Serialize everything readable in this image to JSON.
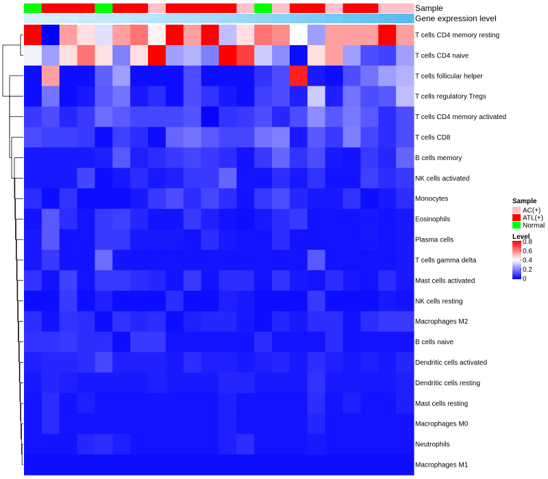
{
  "chart_data": {
    "type": "heatmap",
    "title": "",
    "column_annotations": {
      "sample_label": "Sample",
      "expression_label": "Gene expression level",
      "sample_groups": [
        "Normal",
        "ATL",
        "ATL",
        "ATL",
        "Normal",
        "ATL",
        "ATL",
        "AC",
        "ATL",
        "ATL",
        "ATL",
        "ATL",
        "AC",
        "Normal",
        "AC",
        "ATL",
        "ATL",
        "AC",
        "ATL",
        "ATL",
        "AC",
        "AC"
      ],
      "expression_levels": [
        0.08,
        0.1,
        0.12,
        0.15,
        0.18,
        0.2,
        0.22,
        0.25,
        0.28,
        0.3,
        0.33,
        0.36,
        0.4,
        0.43,
        0.47,
        0.5,
        0.54,
        0.58,
        0.62,
        0.66,
        0.7,
        0.74
      ]
    },
    "rows": [
      "T cells CD4 memory resting",
      "T cells CD4 naive",
      "T cells follicular helper",
      "T cells regulatory  Tregs",
      "T cells CD4 memory activated",
      "T cells CD8",
      "B cells memory",
      "NK cells activated",
      "Monocytes",
      "Eosinophils",
      "Plasma cells",
      "T cells gamma delta",
      "Mast cells activated",
      "NK cells resting",
      "Macrophages M2",
      "B cells naive",
      "Dendritic cells activated",
      "Dendritic cells resting",
      "Mast cells resting",
      "Macrophages M0",
      "Neutrophils",
      "Macrophages M1"
    ],
    "values": [
      [
        0.8,
        0.0,
        0.55,
        0.45,
        0.35,
        0.55,
        0.62,
        0.42,
        0.8,
        0.55,
        0.8,
        0.3,
        0.45,
        0.62,
        0.58,
        0.4,
        0.25,
        0.55,
        0.55,
        0.55,
        0.8,
        0.55
      ],
      [
        0.38,
        0.25,
        0.45,
        0.62,
        0.45,
        0.2,
        0.45,
        0.8,
        0.25,
        0.28,
        0.2,
        0.8,
        0.7,
        0.32,
        0.22,
        0.02,
        0.45,
        0.55,
        0.25,
        0.12,
        0.1,
        0.25
      ],
      [
        0.02,
        0.55,
        0.02,
        0.02,
        0.15,
        0.25,
        0.02,
        0.02,
        0.02,
        0.12,
        0.02,
        0.02,
        0.02,
        0.08,
        0.12,
        0.75,
        0.04,
        0.02,
        0.12,
        0.18,
        0.25,
        0.28
      ],
      [
        0.02,
        0.18,
        0.02,
        0.04,
        0.14,
        0.18,
        0.04,
        0.07,
        0.02,
        0.12,
        0.08,
        0.04,
        0.02,
        0.1,
        0.12,
        0.05,
        0.32,
        0.05,
        0.18,
        0.12,
        0.14,
        0.3
      ],
      [
        0.09,
        0.12,
        0.06,
        0.09,
        0.17,
        0.14,
        0.11,
        0.11,
        0.11,
        0.13,
        0.01,
        0.08,
        0.09,
        0.12,
        0.06,
        0.12,
        0.22,
        0.14,
        0.19,
        0.14,
        0.07,
        0.12
      ],
      [
        0.12,
        0.1,
        0.1,
        0.09,
        0.02,
        0.1,
        0.07,
        0.02,
        0.16,
        0.18,
        0.14,
        0.11,
        0.11,
        0.18,
        0.2,
        0.04,
        0.14,
        0.09,
        0.2,
        0.11,
        0.07,
        0.12
      ],
      [
        0.04,
        0.04,
        0.04,
        0.04,
        0.05,
        0.14,
        0.05,
        0.07,
        0.09,
        0.11,
        0.09,
        0.07,
        0.03,
        0.09,
        0.16,
        0.08,
        0.12,
        0.04,
        0.03,
        0.09,
        0.06,
        0.16
      ],
      [
        0.04,
        0.04,
        0.04,
        0.11,
        0.02,
        0.04,
        0.07,
        0.04,
        0.05,
        0.09,
        0.09,
        0.16,
        0.03,
        0.03,
        0.07,
        0.04,
        0.08,
        0.03,
        0.03,
        0.1,
        0.07,
        0.09
      ],
      [
        0.07,
        0.02,
        0.08,
        0.02,
        0.02,
        0.02,
        0.04,
        0.09,
        0.12,
        0.07,
        0.11,
        0.07,
        0.03,
        0.09,
        0.12,
        0.06,
        0.04,
        0.04,
        0.08,
        0.02,
        0.04,
        0.07
      ],
      [
        0.03,
        0.14,
        0.07,
        0.03,
        0.09,
        0.1,
        0.06,
        0.03,
        0.03,
        0.09,
        0.05,
        0.03,
        0.02,
        0.04,
        0.07,
        0.09,
        0.03,
        0.03,
        0.03,
        0.04,
        0.03,
        0.04
      ],
      [
        0.04,
        0.14,
        0.03,
        0.03,
        0.09,
        0.09,
        0.04,
        0.04,
        0.04,
        0.03,
        0.07,
        0.04,
        0.03,
        0.03,
        0.07,
        0.03,
        0.03,
        0.03,
        0.03,
        0.04,
        0.03,
        0.04
      ],
      [
        0.04,
        0.09,
        0.03,
        0.03,
        0.17,
        0.03,
        0.03,
        0.03,
        0.03,
        0.03,
        0.03,
        0.03,
        0.03,
        0.03,
        0.03,
        0.03,
        0.14,
        0.03,
        0.03,
        0.03,
        0.03,
        0.04
      ],
      [
        0.08,
        0.03,
        0.1,
        0.03,
        0.09,
        0.09,
        0.07,
        0.06,
        0.03,
        0.09,
        0.03,
        0.07,
        0.07,
        0.03,
        0.08,
        0.04,
        0.03,
        0.07,
        0.04,
        0.03,
        0.07,
        0.04
      ],
      [
        0.02,
        0.02,
        0.09,
        0.02,
        0.05,
        0.02,
        0.02,
        0.02,
        0.07,
        0.02,
        0.02,
        0.05,
        0.04,
        0.02,
        0.02,
        0.02,
        0.09,
        0.02,
        0.02,
        0.02,
        0.04,
        0.03
      ],
      [
        0.07,
        0.03,
        0.08,
        0.07,
        0.02,
        0.08,
        0.06,
        0.07,
        0.02,
        0.05,
        0.06,
        0.06,
        0.04,
        0.02,
        0.06,
        0.04,
        0.07,
        0.07,
        0.03,
        0.07,
        0.09,
        0.09
      ],
      [
        0.08,
        0.08,
        0.09,
        0.07,
        0.07,
        0.02,
        0.09,
        0.09,
        0.03,
        0.03,
        0.03,
        0.03,
        0.03,
        0.07,
        0.03,
        0.03,
        0.03,
        0.07,
        0.03,
        0.03,
        0.03,
        0.03
      ],
      [
        0.05,
        0.06,
        0.06,
        0.07,
        0.11,
        0.05,
        0.05,
        0.05,
        0.04,
        0.07,
        0.05,
        0.05,
        0.04,
        0.05,
        0.06,
        0.04,
        0.07,
        0.05,
        0.04,
        0.05,
        0.04,
        0.06
      ],
      [
        0.04,
        0.06,
        0.05,
        0.04,
        0.04,
        0.04,
        0.04,
        0.05,
        0.04,
        0.04,
        0.04,
        0.06,
        0.06,
        0.04,
        0.04,
        0.04,
        0.08,
        0.04,
        0.04,
        0.04,
        0.04,
        0.05
      ],
      [
        0.03,
        0.07,
        0.03,
        0.05,
        0.03,
        0.03,
        0.03,
        0.03,
        0.03,
        0.03,
        0.03,
        0.05,
        0.03,
        0.03,
        0.03,
        0.03,
        0.07,
        0.03,
        0.05,
        0.03,
        0.03,
        0.05
      ],
      [
        0.03,
        0.07,
        0.03,
        0.03,
        0.03,
        0.03,
        0.03,
        0.03,
        0.03,
        0.03,
        0.03,
        0.05,
        0.03,
        0.03,
        0.03,
        0.03,
        0.06,
        0.03,
        0.03,
        0.03,
        0.03,
        0.03
      ],
      [
        0.03,
        0.03,
        0.03,
        0.06,
        0.07,
        0.05,
        0.03,
        0.03,
        0.03,
        0.03,
        0.03,
        0.05,
        0.07,
        0.03,
        0.03,
        0.03,
        0.04,
        0.03,
        0.03,
        0.03,
        0.03,
        0.03
      ],
      [
        0.02,
        0.02,
        0.02,
        0.02,
        0.02,
        0.02,
        0.02,
        0.02,
        0.02,
        0.02,
        0.02,
        0.02,
        0.02,
        0.02,
        0.02,
        0.02,
        0.02,
        0.02,
        0.02,
        0.02,
        0.02,
        0.02
      ]
    ],
    "legend": {
      "sample_title": "Sample",
      "sample_items": [
        {
          "label": "AC(+)",
          "color": "#ffc0cb"
        },
        {
          "label": "ATL(+)",
          "color": "#ff0000"
        },
        {
          "label": "Normal",
          "color": "#00ff00"
        }
      ],
      "level_title": "Level",
      "level_ticks": [
        "0.8",
        "0.6",
        "0.4",
        "0.2",
        "0"
      ],
      "level_range": [
        0,
        0.8
      ],
      "position": "right"
    },
    "color_scale": {
      "low": "#0000ff",
      "mid": "#ffffff",
      "high": "#ff0000"
    },
    "annotation_color_scale": {
      "low": "#e8f6fc",
      "high": "#4bb8ee"
    },
    "group_colors": {
      "AC": "#ffc0cb",
      "ATL": "#ff0000",
      "Normal": "#00ff00"
    },
    "dendrogram": "left",
    "xlabel": "",
    "ylabel": ""
  }
}
